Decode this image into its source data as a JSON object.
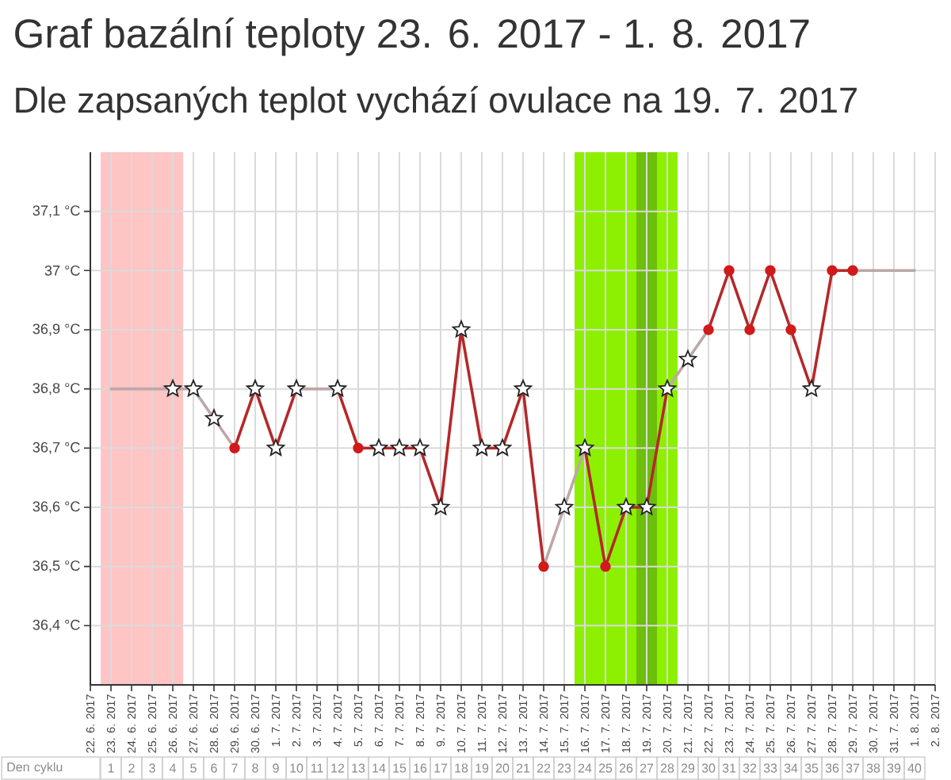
{
  "chart_data": {
    "type": "line",
    "title": "Graf bazální teploty 23. 6. 2017 - 1. 8. 2017",
    "subtitle": "Dle zapsaných teplot vychází ovulace na 19. 7. 2017",
    "xlim": [
      "2017-06-22",
      "2017-08-02"
    ],
    "xticks": [
      {
        "value": "2017-06-22",
        "label": "22. 6. 2017"
      },
      {
        "value": "2017-06-23",
        "label": "23. 6. 2017"
      },
      {
        "value": "2017-06-24",
        "label": "24. 6. 2017"
      },
      {
        "value": "2017-06-25",
        "label": "25. 6. 2017"
      },
      {
        "value": "2017-06-26",
        "label": "26. 6. 2017"
      },
      {
        "value": "2017-06-27",
        "label": "27. 6. 2017"
      },
      {
        "value": "2017-06-28",
        "label": "28. 6. 2017"
      },
      {
        "value": "2017-06-29",
        "label": "29. 6. 2017"
      },
      {
        "value": "2017-06-30",
        "label": "30. 6. 2017"
      },
      {
        "value": "2017-07-01",
        "label": "1. 7. 2017"
      },
      {
        "value": "2017-07-02",
        "label": "2. 7. 2017"
      },
      {
        "value": "2017-07-03",
        "label": "3. 7. 2017"
      },
      {
        "value": "2017-07-04",
        "label": "4. 7. 2017"
      },
      {
        "value": "2017-07-05",
        "label": "5. 7. 2017"
      },
      {
        "value": "2017-07-06",
        "label": "6. 7. 2017"
      },
      {
        "value": "2017-07-07",
        "label": "7. 7. 2017"
      },
      {
        "value": "2017-07-08",
        "label": "8. 7. 2017"
      },
      {
        "value": "2017-07-09",
        "label": "9. 7. 2017"
      },
      {
        "value": "2017-07-10",
        "label": "10. 7. 2017"
      },
      {
        "value": "2017-07-11",
        "label": "11. 7. 2017"
      },
      {
        "value": "2017-07-12",
        "label": "12. 7. 2017"
      },
      {
        "value": "2017-07-13",
        "label": "13. 7. 2017"
      },
      {
        "value": "2017-07-14",
        "label": "14. 7. 2017"
      },
      {
        "value": "2017-07-15",
        "label": "15. 7. 2017"
      },
      {
        "value": "2017-07-16",
        "label": "16. 7. 2017"
      },
      {
        "value": "2017-07-17",
        "label": "17. 7. 2017"
      },
      {
        "value": "2017-07-18",
        "label": "18. 7. 2017"
      },
      {
        "value": "2017-07-19",
        "label": "19. 7. 2017"
      },
      {
        "value": "2017-07-20",
        "label": "20. 7. 2017"
      },
      {
        "value": "2017-07-21",
        "label": "21. 7. 2017"
      },
      {
        "value": "2017-07-22",
        "label": "22. 7. 2017"
      },
      {
        "value": "2017-07-23",
        "label": "23. 7. 2017"
      },
      {
        "value": "2017-07-24",
        "label": "24. 7. 2017"
      },
      {
        "value": "2017-07-25",
        "label": "25. 7. 2017"
      },
      {
        "value": "2017-07-26",
        "label": "26. 7. 2017"
      },
      {
        "value": "2017-07-27",
        "label": "27. 7. 2017"
      },
      {
        "value": "2017-07-28",
        "label": "28. 7. 2017"
      },
      {
        "value": "2017-07-29",
        "label": "29. 7. 2017"
      },
      {
        "value": "2017-07-30",
        "label": "30. 7. 2017"
      },
      {
        "value": "2017-07-31",
        "label": "31. 7. 2017"
      },
      {
        "value": "2017-08-01",
        "label": "1. 8. 2017"
      },
      {
        "value": "2017-08-02",
        "label": "2. 8. 2017"
      }
    ],
    "x2label": "Den cyklu",
    "x2lim": [
      0,
      41
    ],
    "x2ticks": [
      1,
      2,
      3,
      4,
      5,
      6,
      7,
      8,
      9,
      10,
      11,
      12,
      13,
      14,
      15,
      16,
      17,
      18,
      19,
      20,
      21,
      22,
      23,
      24,
      25,
      26,
      27,
      28,
      29,
      30,
      31,
      32,
      33,
      34,
      35,
      36,
      37,
      38,
      39,
      40
    ],
    "ylim": [
      36.3,
      37.2
    ],
    "yticks": [
      {
        "value": 36.4,
        "label": "36,4 °C"
      },
      {
        "value": 36.5,
        "label": "36,5 °C"
      },
      {
        "value": 36.6,
        "label": "36,6 °C"
      },
      {
        "value": 36.7,
        "label": "36,7 °C"
      },
      {
        "value": 36.8,
        "label": "36,8 °C"
      },
      {
        "value": 36.9,
        "label": "36,9 °C"
      },
      {
        "value": 37,
        "label": "37 °C"
      },
      {
        "value": 37.1,
        "label": "37,1 °C"
      }
    ],
    "grid": true,
    "bands": [
      {
        "axis": "x",
        "from": "2017-06-22T12:00",
        "to": "2017-06-26T12:00",
        "color": "#ffc4c4"
      },
      {
        "axis": "x",
        "from": "2017-07-15T12:00",
        "to": "2017-07-20T12:00",
        "color": "#8cf000"
      },
      {
        "axis": "x",
        "from": "2017-07-18T12:00",
        "to": "2017-07-19T12:00",
        "color": "#6cbf0a"
      }
    ],
    "series": [
      {
        "color": "#bca8a8",
        "marker": "none",
        "x": [
          "2017-06-23",
          "2017-06-26",
          "2017-06-27",
          "2017-06-28",
          "2017-06-29",
          "2017-06-30",
          "2017-07-02",
          "2017-07-04",
          "2017-07-05",
          "2017-07-14",
          "2017-07-15",
          "2017-07-16",
          "2017-07-17",
          "2017-07-20",
          "2017-07-21",
          "2017-07-22",
          "2017-07-23",
          "2017-07-29",
          "2017-08-01"
        ],
        "values": [
          36.8,
          36.8,
          36.8,
          36.75,
          36.7,
          null,
          36.8,
          36.8,
          null,
          36.5,
          36.6,
          36.7,
          null,
          36.8,
          36.85,
          36.9,
          null,
          37.0,
          37.0
        ]
      },
      {
        "color": "#b5282a",
        "marker": "none",
        "x": [
          "2017-06-29",
          "2017-06-30",
          "2017-07-01",
          "2017-07-02",
          "2017-07-03",
          "2017-07-04",
          "2017-07-05",
          "2017-07-06",
          "2017-07-07",
          "2017-07-08",
          "2017-07-09",
          "2017-07-10",
          "2017-07-11",
          "2017-07-12",
          "2017-07-13",
          "2017-07-14",
          "2017-07-15",
          "2017-07-16",
          "2017-07-17",
          "2017-07-18",
          "2017-07-19",
          "2017-07-20",
          "2017-07-21",
          "2017-07-22",
          "2017-07-23",
          "2017-07-24",
          "2017-07-25",
          "2017-07-26",
          "2017-07-27",
          "2017-07-28",
          "2017-07-29"
        ],
        "values": [
          36.7,
          36.8,
          36.7,
          36.8,
          null,
          36.8,
          36.7,
          36.7,
          36.7,
          36.7,
          36.6,
          36.9,
          36.7,
          36.7,
          36.8,
          36.5,
          null,
          36.7,
          36.5,
          36.6,
          36.6,
          36.8,
          null,
          36.9,
          37.0,
          36.9,
          37.0,
          36.9,
          36.8,
          37.0,
          37.0
        ]
      },
      {
        "type": "scatter",
        "color": "#ffffff",
        "marker": "star",
        "x": [
          "2017-06-26",
          "2017-06-27",
          "2017-06-28",
          "2017-06-30",
          "2017-07-01",
          "2017-07-02",
          "2017-07-04",
          "2017-07-06",
          "2017-07-07",
          "2017-07-08",
          "2017-07-09",
          "2017-07-10",
          "2017-07-11",
          "2017-07-12",
          "2017-07-13",
          "2017-07-15",
          "2017-07-16",
          "2017-07-18",
          "2017-07-19",
          "2017-07-20",
          "2017-07-21",
          "2017-07-27"
        ],
        "values": [
          36.8,
          36.8,
          36.75,
          36.8,
          36.7,
          36.8,
          36.8,
          36.7,
          36.7,
          36.7,
          36.6,
          36.9,
          36.7,
          36.7,
          36.8,
          36.6,
          36.7,
          36.6,
          36.6,
          36.8,
          36.85,
          36.8
        ]
      },
      {
        "type": "scatter",
        "color": "#d11a1a",
        "marker": "circle",
        "x": [
          "2017-06-29",
          "2017-07-05",
          "2017-07-14",
          "2017-07-17",
          "2017-07-22",
          "2017-07-23",
          "2017-07-24",
          "2017-07-25",
          "2017-07-26",
          "2017-07-28",
          "2017-07-29"
        ],
        "values": [
          36.7,
          36.7,
          36.5,
          36.5,
          36.9,
          37.0,
          36.9,
          37.0,
          36.9,
          37.0,
          37.0
        ]
      }
    ]
  }
}
